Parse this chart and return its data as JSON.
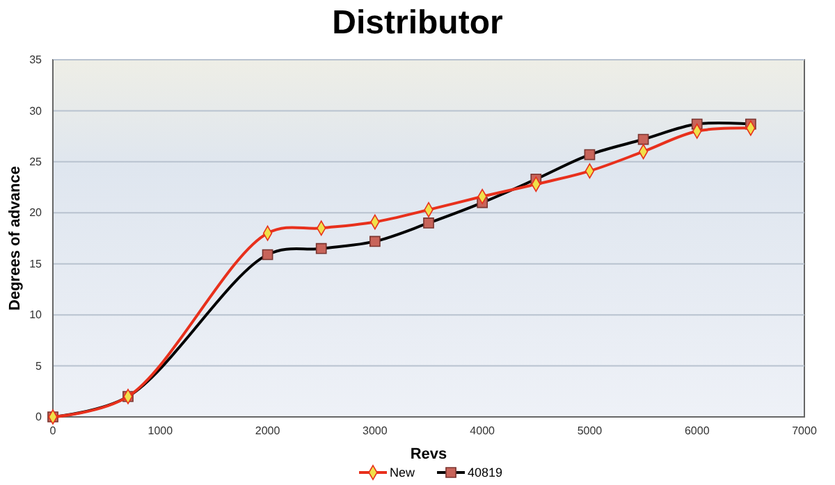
{
  "chart_data": {
    "type": "line",
    "title": "Distributor",
    "xlabel": "Revs",
    "ylabel": "Degrees of advance",
    "x": [
      0,
      700,
      2000,
      2500,
      3000,
      3500,
      4000,
      4500,
      5000,
      5500,
      6000,
      6500
    ],
    "series": [
      {
        "name": "New",
        "color": "#e8301c",
        "marker": "diamond",
        "values": [
          0,
          2,
          18,
          18.5,
          19.1,
          20.3,
          21.6,
          22.8,
          24.1,
          26,
          28,
          28.3
        ]
      },
      {
        "name": "40819",
        "color": "#000000",
        "marker": "square",
        "values": [
          0,
          2,
          15.9,
          16.5,
          17.2,
          19,
          21,
          23.3,
          25.7,
          27.2,
          28.7,
          28.7
        ]
      }
    ],
    "xlim": [
      0,
      7000
    ],
    "xticks": [
      0,
      1000,
      2000,
      3000,
      4000,
      5000,
      6000,
      7000
    ],
    "ylim": [
      0,
      35
    ],
    "yticks": [
      0,
      5,
      10,
      15,
      20,
      25,
      30,
      35
    ],
    "grid": "y",
    "legend": "bottom",
    "line_style": "solid"
  }
}
